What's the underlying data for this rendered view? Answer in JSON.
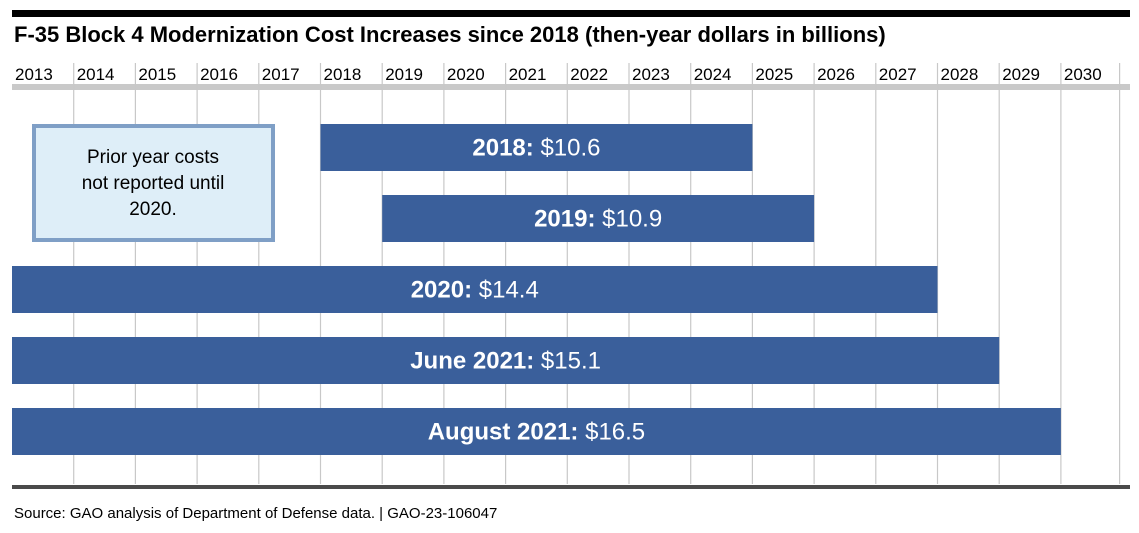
{
  "colors": {
    "bar_fill": "#3a5f9b",
    "note_fill": "#deeef8",
    "note_border": "#7f9fc6",
    "grid": "#c8c8c8",
    "header_band": "#c9c9c9"
  },
  "chart_data": {
    "type": "bar",
    "orientation": "horizontal-timeline",
    "title": "F-35 Block 4 Modernization Cost Increases since 2018 (then-year dollars in billions)",
    "x_ticks": [
      "2013",
      "2014",
      "2015",
      "2016",
      "2017",
      "2018",
      "2019",
      "2020",
      "2021",
      "2022",
      "2023",
      "2024",
      "2025",
      "2026",
      "2027",
      "2028",
      "2029",
      "2030"
    ],
    "xlim": [
      2013,
      2031
    ],
    "grid": true,
    "series": [
      {
        "label": "2018:",
        "value_text": "$10.6",
        "value": 10.6,
        "start": 2018,
        "end": 2025
      },
      {
        "label": "2019:",
        "value_text": "$10.9",
        "value": 10.9,
        "start": 2019,
        "end": 2026
      },
      {
        "label": "2020:",
        "value_text": "$14.4",
        "value": 14.4,
        "start": 2013,
        "end": 2028
      },
      {
        "label": "June 2021:",
        "value_text": "$15.1",
        "value": 15.1,
        "start": 2013,
        "end": 2029
      },
      {
        "label": "August 2021:",
        "value_text": "$16.5",
        "value": 16.5,
        "start": 2013,
        "end": 2030
      }
    ],
    "annotations": [
      {
        "lines": [
          "Prior year costs",
          "not reported until",
          "2020."
        ]
      }
    ]
  },
  "source": "Source: GAO analysis of Department of Defense data.  |  GAO-23-106047"
}
